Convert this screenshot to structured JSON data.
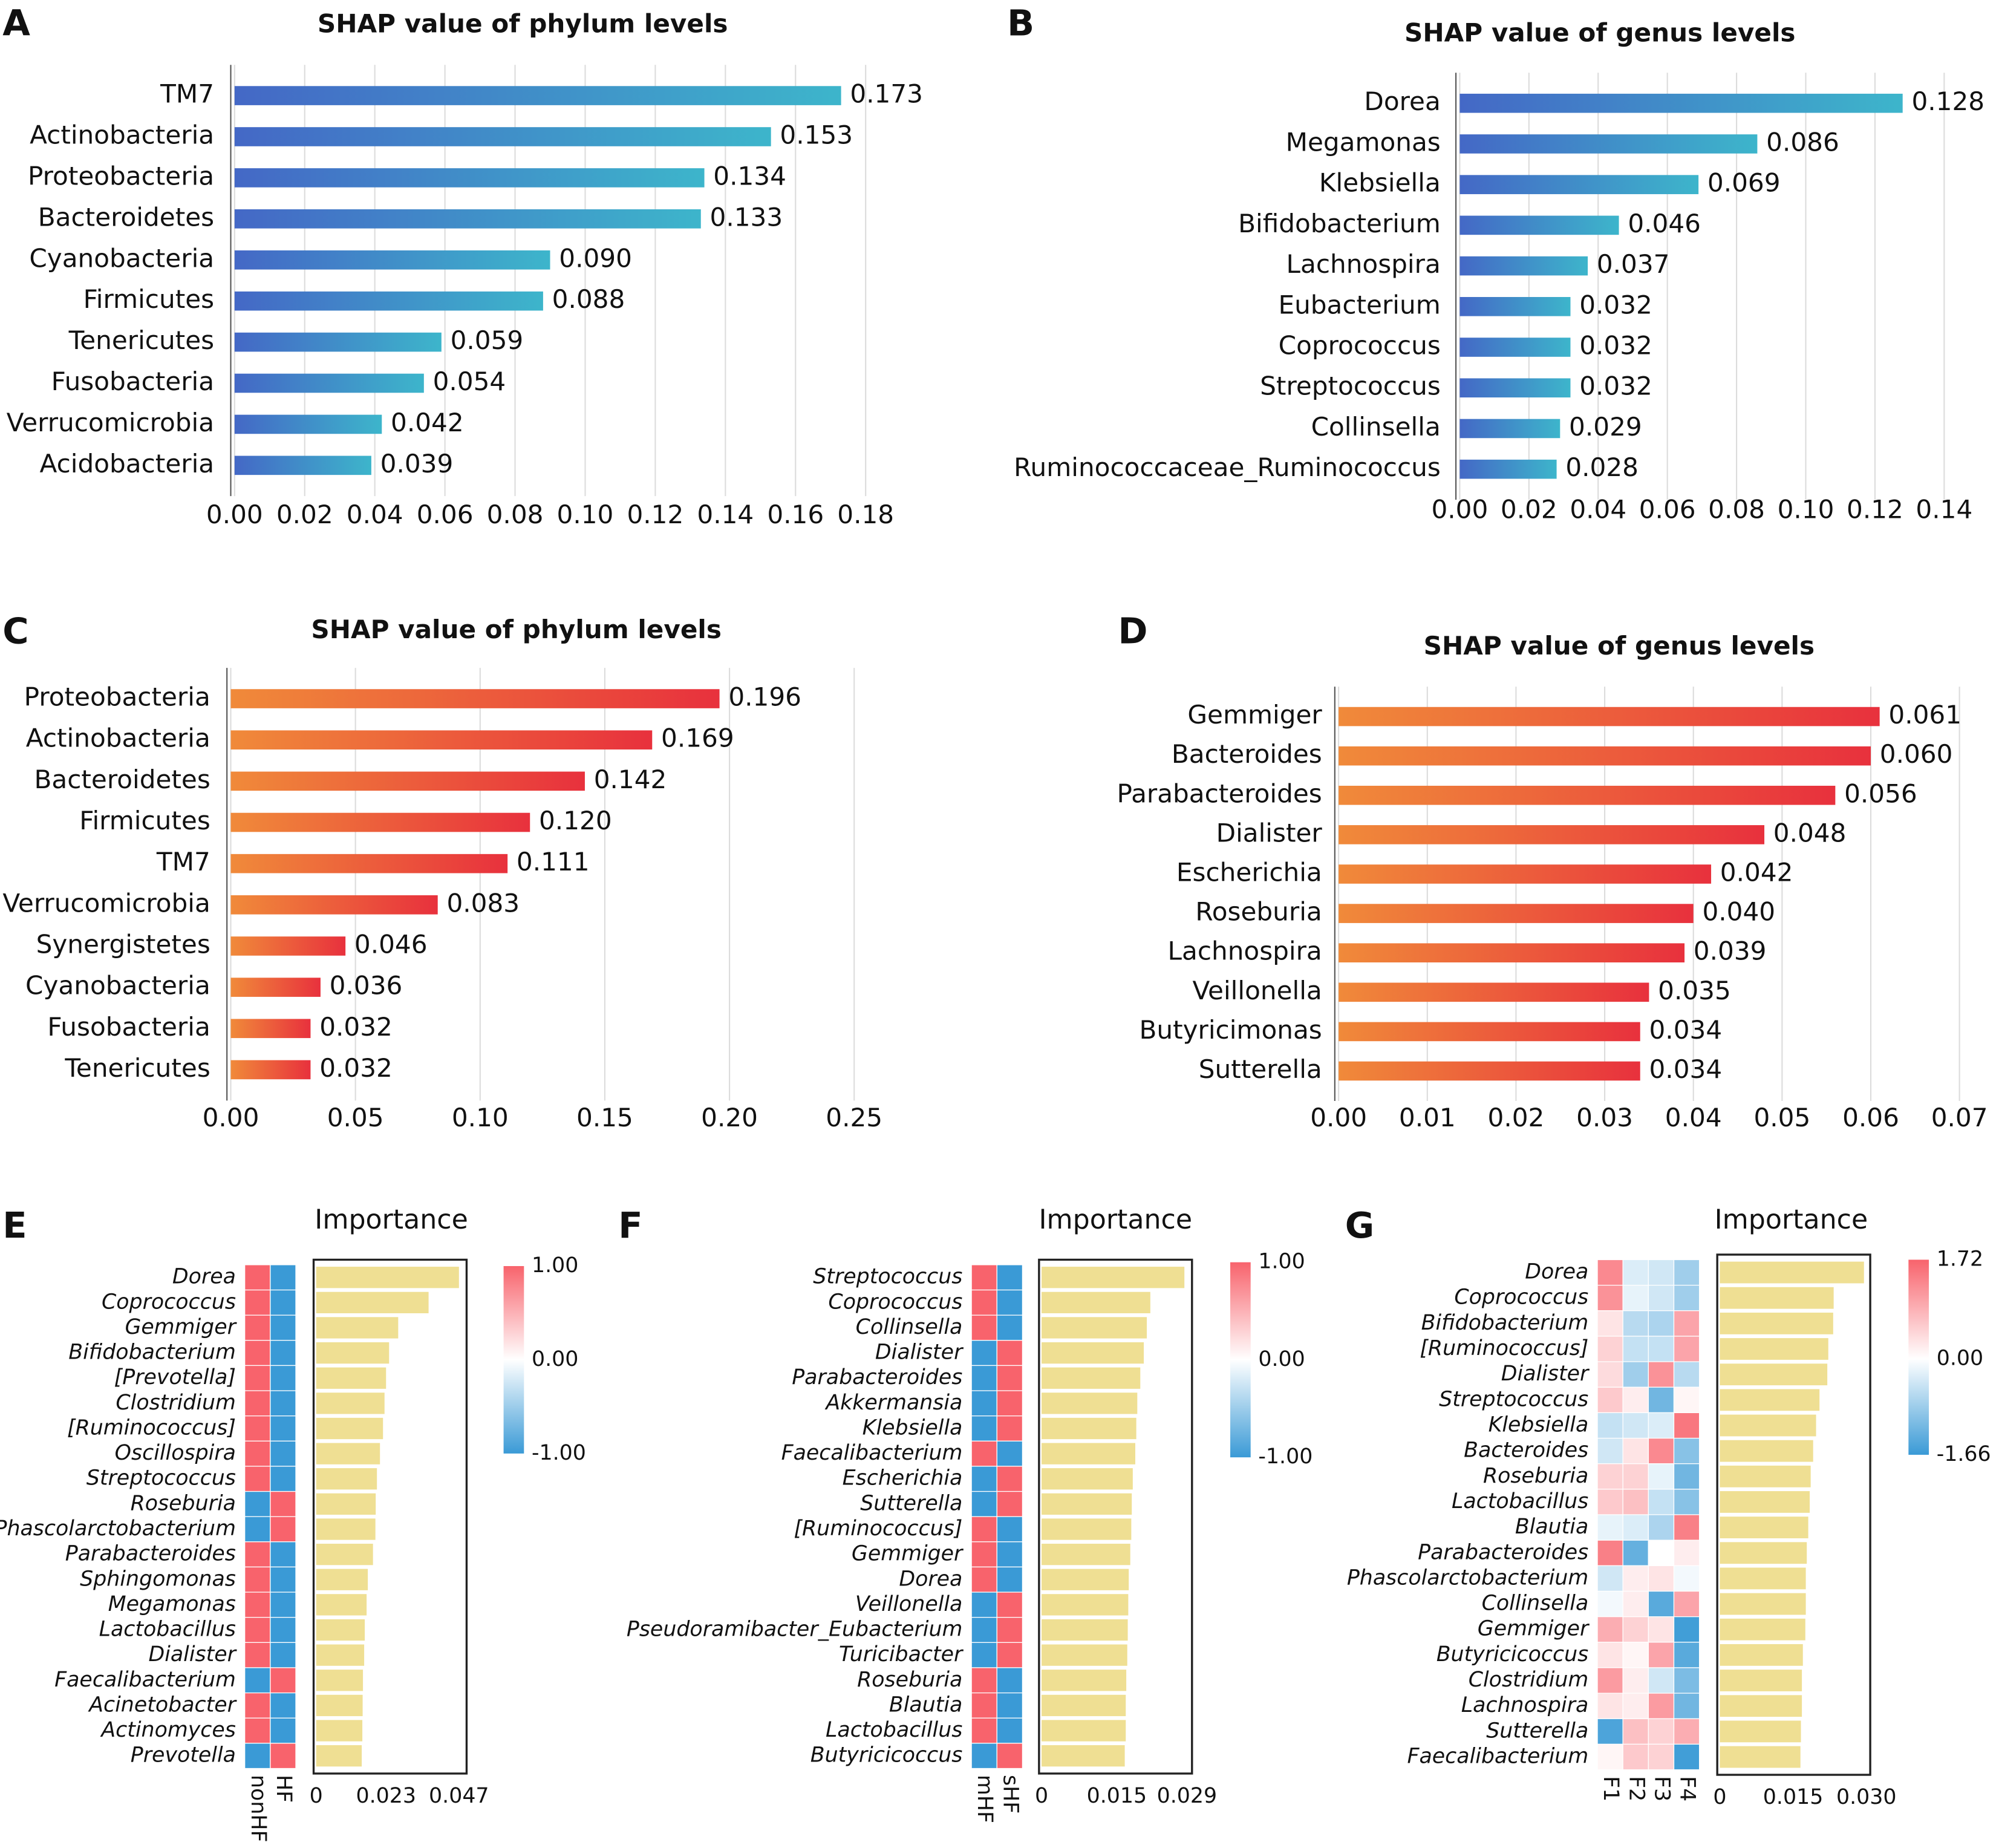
{
  "chart_data": [
    {
      "type": "bar",
      "panel": "A",
      "title": "SHAP value of phylum levels",
      "categories": [
        "TM7",
        "Actinobacteria",
        "Proteobacteria",
        "Bacteroidetes",
        "Cyanobacteria",
        "Firmicutes",
        "Tenericutes",
        "Fusobacteria",
        "Verrucomicrobia",
        "Acidobacteria"
      ],
      "values": [
        0.173,
        0.153,
        0.134,
        0.133,
        0.09,
        0.088,
        0.059,
        0.054,
        0.042,
        0.039
      ],
      "value_labels": [
        "0.173",
        "0.153",
        "0.134",
        "0.133",
        "0.090",
        "0.088",
        "0.059",
        "0.054",
        "0.042",
        "0.039"
      ],
      "colors": [
        "#4468c6",
        "#3db5cb"
      ],
      "grid": true,
      "xlim": [
        0,
        0.18
      ],
      "xticks": [
        {
          "value": 0,
          "label": "0.00"
        },
        {
          "value": 0.02,
          "label": "0.02"
        },
        {
          "value": 0.04,
          "label": "0.04"
        },
        {
          "value": 0.06,
          "label": "0.06"
        },
        {
          "value": 0.08,
          "label": "0.08"
        },
        {
          "value": 0.1,
          "label": "0.10"
        },
        {
          "value": 0.12,
          "label": "0.12"
        },
        {
          "value": 0.14,
          "label": "0.14"
        },
        {
          "value": 0.16,
          "label": "0.16"
        },
        {
          "value": 0.18,
          "label": "0.18"
        }
      ]
    },
    {
      "type": "bar",
      "panel": "B",
      "title": "SHAP value of genus levels",
      "categories": [
        "Dorea",
        "Megamonas",
        "Klebsiella",
        "Bifidobacterium",
        "Lachnospira",
        "Eubacterium",
        "Coprococcus",
        "Streptococcus",
        "Collinsella",
        "Ruminococcaceae_Ruminococcus"
      ],
      "values": [
        0.128,
        0.086,
        0.069,
        0.046,
        0.037,
        0.032,
        0.032,
        0.032,
        0.029,
        0.028
      ],
      "value_labels": [
        "0.128",
        "0.086",
        "0.069",
        "0.046",
        "0.037",
        "0.032",
        "0.032",
        "0.032",
        "0.029",
        "0.028"
      ],
      "colors": [
        "#4468c6",
        "#3db5cb"
      ],
      "grid": true,
      "xlim": [
        0,
        0.14
      ],
      "xticks": [
        {
          "value": 0,
          "label": "0.00"
        },
        {
          "value": 0.02,
          "label": "0.02"
        },
        {
          "value": 0.04,
          "label": "0.04"
        },
        {
          "value": 0.06,
          "label": "0.06"
        },
        {
          "value": 0.08,
          "label": "0.08"
        },
        {
          "value": 0.1,
          "label": "0.10"
        },
        {
          "value": 0.12,
          "label": "0.12"
        },
        {
          "value": 0.14,
          "label": "0.14"
        }
      ]
    },
    {
      "type": "bar",
      "panel": "C",
      "title": "SHAP value of phylum levels",
      "categories": [
        "Proteobacteria",
        "Actinobacteria",
        "Bacteroidetes",
        "Firmicutes",
        "TM7",
        "Verrucomicrobia",
        "Synergistetes",
        "Cyanobacteria",
        "Fusobacteria",
        "Tenericutes"
      ],
      "values": [
        0.196,
        0.169,
        0.142,
        0.12,
        0.111,
        0.083,
        0.046,
        0.036,
        0.032,
        0.032
      ],
      "value_labels": [
        "0.196",
        "0.169",
        "0.142",
        "0.120",
        "0.111",
        "0.083",
        "0.046",
        "0.036",
        "0.032",
        "0.032"
      ],
      "colors": [
        "#f08a3a",
        "#e8313d"
      ],
      "grid": true,
      "xlim": [
        0,
        0.25
      ],
      "xticks": [
        {
          "value": 0,
          "label": "0.00"
        },
        {
          "value": 0.05,
          "label": "0.05"
        },
        {
          "value": 0.1,
          "label": "0.10"
        },
        {
          "value": 0.15,
          "label": "0.15"
        },
        {
          "value": 0.2,
          "label": "0.20"
        },
        {
          "value": 0.25,
          "label": "0.25"
        }
      ]
    },
    {
      "type": "bar",
      "panel": "D",
      "title": "SHAP value of genus levels",
      "categories": [
        "Gemmiger",
        "Bacteroides",
        "Parabacteroides",
        "Dialister",
        "Escherichia",
        "Roseburia",
        "Lachnospira",
        "Veillonella",
        "Butyricimonas",
        "Sutterella"
      ],
      "values": [
        0.061,
        0.06,
        0.056,
        0.048,
        0.042,
        0.04,
        0.039,
        0.035,
        0.034,
        0.034
      ],
      "value_labels": [
        "0.061",
        "0.060",
        "0.056",
        "0.048",
        "0.042",
        "0.040",
        "0.039",
        "0.035",
        "0.034",
        "0.034"
      ],
      "colors": [
        "#f08a3a",
        "#e8313d"
      ],
      "grid": true,
      "xlim": [
        0,
        0.07
      ],
      "xticks": [
        {
          "value": 0,
          "label": "0.00"
        },
        {
          "value": 0.01,
          "label": "0.01"
        },
        {
          "value": 0.02,
          "label": "0.02"
        },
        {
          "value": 0.03,
          "label": "0.03"
        },
        {
          "value": 0.04,
          "label": "0.04"
        },
        {
          "value": 0.05,
          "label": "0.05"
        },
        {
          "value": 0.06,
          "label": "0.06"
        },
        {
          "value": 0.07,
          "label": "0.07"
        }
      ]
    },
    {
      "type": "heatmap_bar",
      "panel": "E",
      "title": "Importance",
      "categories": [
        "Dorea",
        "Coprococcus",
        "Gemmiger",
        "Bifidobacterium",
        "[Prevotella]",
        "Clostridium",
        "[Ruminococcus]",
        "Oscillospira",
        "Streptococcus",
        "Roseburia",
        "Phascolarctobacterium",
        "Parabacteroides",
        "Sphingomonas",
        "Megamonas",
        "Lactobacillus",
        "Dialister",
        "Faecalibacterium",
        "Acinetobacter",
        "Actinomyces",
        "Prevotella"
      ],
      "columns": [
        "nonHF",
        "HF"
      ],
      "matrix": [
        [
          1,
          -1
        ],
        [
          1,
          -1
        ],
        [
          1,
          -1
        ],
        [
          1,
          -1
        ],
        [
          1,
          -1
        ],
        [
          1,
          -1
        ],
        [
          1,
          -1
        ],
        [
          1,
          -1
        ],
        [
          1,
          -1
        ],
        [
          -1,
          1
        ],
        [
          -1,
          1
        ],
        [
          1,
          -1
        ],
        [
          1,
          -1
        ],
        [
          1,
          -1
        ],
        [
          1,
          -1
        ],
        [
          1,
          -1
        ],
        [
          -1,
          1
        ],
        [
          1,
          -1
        ],
        [
          1,
          -1
        ],
        [
          -1,
          1
        ]
      ],
      "values": [
        0.047,
        0.037,
        0.027,
        0.024,
        0.023,
        0.0225,
        0.022,
        0.021,
        0.02,
        0.0196,
        0.0195,
        0.0187,
        0.017,
        0.0166,
        0.016,
        0.0158,
        0.0154,
        0.0153,
        0.0152,
        0.015
      ],
      "bar_color": "#efdf93",
      "heat_colors": [
        "#3a9ad6",
        "#ffffff",
        "#f8636c"
      ],
      "clim": [
        -1,
        1
      ],
      "cticks": [
        {
          "value": 1,
          "label": "1.00"
        },
        {
          "value": 0,
          "label": "0.00"
        },
        {
          "value": -1,
          "label": "-1.00"
        }
      ],
      "xlim": [
        0,
        0.047
      ],
      "xticks": [
        0,
        0.023,
        0.047
      ]
    },
    {
      "type": "heatmap_bar",
      "panel": "F",
      "title": "Importance",
      "categories": [
        "Streptococcus",
        "Coprococcus",
        "Collinsella",
        "Dialister",
        "Parabacteroides",
        "Akkermansia",
        "Klebsiella",
        "Faecalibacterium",
        "Escherichia",
        "Sutterella",
        "[Ruminococcus]",
        "Gemmiger",
        "Dorea",
        "Veillonella",
        "Pseudoramibacter_Eubacterium",
        "Turicibacter",
        "Roseburia",
        "Blautia",
        "Lactobacillus",
        "Butyricicoccus"
      ],
      "columns": [
        "mHF",
        "sHF"
      ],
      "matrix": [
        [
          1,
          -1
        ],
        [
          1,
          -1
        ],
        [
          1,
          -1
        ],
        [
          -1,
          1
        ],
        [
          -1,
          1
        ],
        [
          -1,
          1
        ],
        [
          -1,
          1
        ],
        [
          1,
          -1
        ],
        [
          -1,
          1
        ],
        [
          -1,
          1
        ],
        [
          1,
          -1
        ],
        [
          1,
          -1
        ],
        [
          1,
          -1
        ],
        [
          -1,
          1
        ],
        [
          -1,
          1
        ],
        [
          -1,
          1
        ],
        [
          1,
          -1
        ],
        [
          1,
          -1
        ],
        [
          1,
          -1
        ],
        [
          -1,
          1
        ]
      ],
      "values": [
        0.0285,
        0.0217,
        0.021,
        0.0204,
        0.0197,
        0.0191,
        0.0189,
        0.0187,
        0.0182,
        0.018,
        0.0179,
        0.0177,
        0.0174,
        0.0173,
        0.0172,
        0.0171,
        0.0169,
        0.0168,
        0.0168,
        0.0166
      ],
      "bar_color": "#efdf93",
      "heat_colors": [
        "#3a9ad6",
        "#ffffff",
        "#f8636c"
      ],
      "clim": [
        -1,
        1
      ],
      "cticks": [
        {
          "value": 1,
          "label": "1.00"
        },
        {
          "value": 0,
          "label": "0.00"
        },
        {
          "value": -1,
          "label": "-1.00"
        }
      ],
      "xlim": [
        0,
        0.029
      ],
      "xticks": [
        0,
        0.015,
        0.029
      ]
    },
    {
      "type": "heatmap_bar",
      "panel": "G",
      "title": "Importance",
      "categories": [
        "Dorea",
        "Coprococcus",
        "Bifidobacterium",
        "[Ruminococcus]",
        "Dialister",
        "Streptococcus",
        "Klebsiella",
        "Bacteroides",
        "Roseburia",
        "Lactobacillus",
        "Blautia",
        "Parabacteroides",
        "Phascolarctobacterium",
        "Collinsella",
        "Gemmiger",
        "Butyricicoccus",
        "Clostridium",
        "Lachnospira",
        "Sutterella",
        "Faecalibacterium"
      ],
      "columns": [
        "F1",
        "F2",
        "F3",
        "F4"
      ],
      "matrix": [
        [
          1.3,
          -0.3,
          -0.4,
          -0.8
        ],
        [
          1.2,
          -0.2,
          -0.4,
          -0.8
        ],
        [
          0.3,
          -0.6,
          -0.7,
          1.0
        ],
        [
          0.5,
          -0.5,
          -0.5,
          1.0
        ],
        [
          0.4,
          -0.8,
          1.2,
          -0.6
        ],
        [
          0.6,
          0.2,
          -1.2,
          0.1
        ],
        [
          -0.5,
          -0.4,
          -0.3,
          1.5
        ],
        [
          -0.4,
          0.3,
          1.3,
          -1.0
        ],
        [
          0.5,
          0.5,
          -0.2,
          -1.2
        ],
        [
          0.6,
          0.7,
          -0.5,
          -1.0
        ],
        [
          -0.2,
          -0.3,
          -0.7,
          1.4
        ],
        [
          1.4,
          -1.3,
          0,
          0.2
        ],
        [
          -0.4,
          0.2,
          0.3,
          -0.1
        ],
        [
          -0.1,
          0.2,
          -1.4,
          1.0
        ],
        [
          0.9,
          0.5,
          0.3,
          -1.6
        ],
        [
          0.3,
          0.1,
          1.0,
          -1.4
        ],
        [
          1.1,
          0.2,
          -0.4,
          -1.1
        ],
        [
          0.3,
          0.2,
          1.1,
          -1.2
        ],
        [
          -1.5,
          0.7,
          0.5,
          0.9
        ],
        [
          0.1,
          0.6,
          0.5,
          -1.6
        ]
      ],
      "values": [
        0.0295,
        0.0233,
        0.0232,
        0.0222,
        0.022,
        0.0204,
        0.0197,
        0.0191,
        0.0186,
        0.0184,
        0.0181,
        0.0178,
        0.0176,
        0.0176,
        0.0175,
        0.017,
        0.0168,
        0.0168,
        0.0166,
        0.0165
      ],
      "bar_color": "#efdf93",
      "heat_colors": [
        "#3a9ad6",
        "#ffffff",
        "#f8636c"
      ],
      "clim": [
        -1.66,
        1.72
      ],
      "cticks": [
        1.72,
        {
          "value": 0,
          "label": "0.00"
        },
        -1.66
      ],
      "xlim": [
        0,
        0.03
      ],
      "xticks": [
        0,
        0.015,
        {
          "value": 0.03,
          "label": "0.030"
        }
      ]
    }
  ]
}
